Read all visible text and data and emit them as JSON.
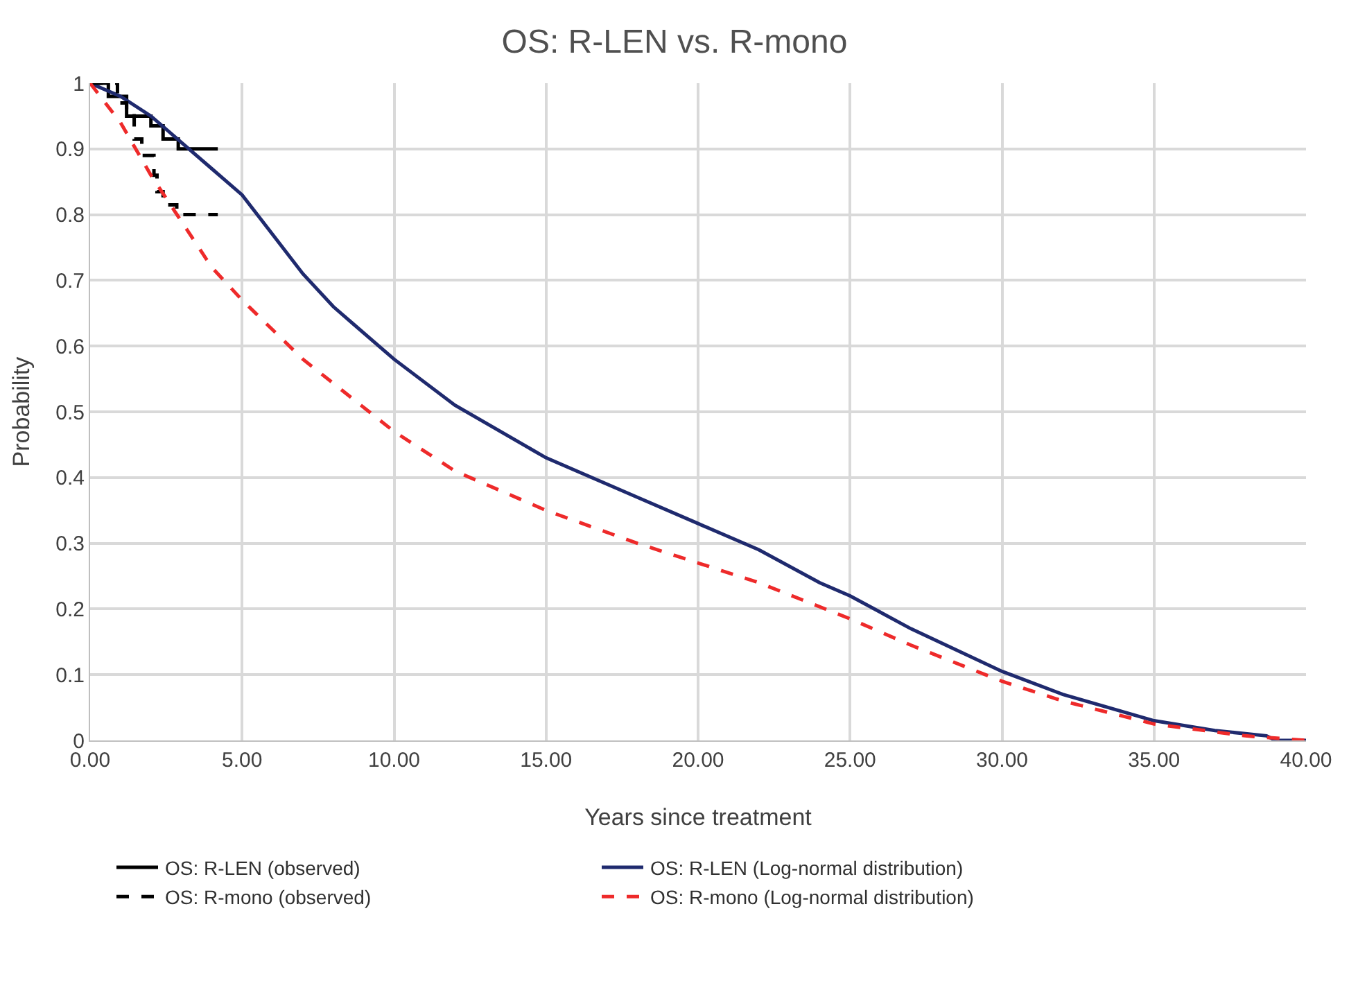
{
  "chart_data": {
    "type": "line",
    "title": "OS: R-LEN vs. R-mono",
    "xlabel": "Years since treatment",
    "ylabel": "Probability",
    "xlim": [
      0,
      40
    ],
    "ylim": [
      0,
      1
    ],
    "xticks": [
      {
        "value": 0,
        "label": "0.00"
      },
      {
        "value": 5,
        "label": "5.00"
      },
      {
        "value": 10,
        "label": "10.00"
      },
      {
        "value": 15,
        "label": "15.00"
      },
      {
        "value": 20,
        "label": "20.00"
      },
      {
        "value": 25,
        "label": "25.00"
      },
      {
        "value": 30,
        "label": "30.00"
      },
      {
        "value": 35,
        "label": "35.00"
      },
      {
        "value": 40,
        "label": "40.00"
      }
    ],
    "yticks": [
      0,
      0.1,
      0.2,
      0.3,
      0.4,
      0.5,
      0.6,
      0.7,
      0.8,
      0.9,
      1
    ],
    "grid": true,
    "legend": "bottom",
    "marker": "none",
    "series": [
      {
        "name": "OS: R-LEN (observed)",
        "type": "step",
        "color": "#000000",
        "line_style": "solid",
        "x": [
          0,
          0.6,
          1.2,
          2.0,
          2.4,
          2.9,
          4.2
        ],
        "values": [
          1,
          0.98,
          0.95,
          0.935,
          0.915,
          0.9,
          0.9
        ]
      },
      {
        "name": "OS: R-LEN (Log-normal distribution)",
        "color": "#1f2a6e",
        "line_style": "solid",
        "x": [
          0,
          1,
          2,
          3,
          4,
          5,
          6,
          7,
          8,
          10,
          12,
          15,
          18,
          20,
          22,
          24,
          25,
          27,
          30,
          32,
          35,
          37,
          38.7,
          39,
          40
        ],
        "values": [
          1,
          0.98,
          0.95,
          0.91,
          0.87,
          0.83,
          0.77,
          0.71,
          0.66,
          0.58,
          0.51,
          0.43,
          0.37,
          0.33,
          0.29,
          0.24,
          0.22,
          0.17,
          0.105,
          0.07,
          0.03,
          0.015,
          0.007,
          0,
          0
        ]
      },
      {
        "name": "OS: R-mono (observed)",
        "type": "step",
        "color": "#000000",
        "line_style": "dashed",
        "x": [
          0,
          0.9,
          1.2,
          1.45,
          1.7,
          2.1,
          2.2,
          2.4,
          2.85,
          4.2
        ],
        "values": [
          1,
          0.97,
          0.955,
          0.915,
          0.89,
          0.86,
          0.835,
          0.815,
          0.8,
          0.8
        ]
      },
      {
        "name": "OS: R-mono (Log-normal distribution)",
        "color": "#ee2a2a",
        "line_style": "dashed",
        "x": [
          0,
          1,
          2,
          3,
          4,
          5,
          7,
          10,
          12,
          15,
          18,
          20,
          22,
          25,
          27,
          30,
          32,
          35,
          38,
          40
        ],
        "values": [
          1,
          0.94,
          0.86,
          0.79,
          0.72,
          0.67,
          0.58,
          0.47,
          0.41,
          0.35,
          0.3,
          0.27,
          0.24,
          0.185,
          0.145,
          0.09,
          0.06,
          0.025,
          0.007,
          0
        ]
      }
    ]
  }
}
